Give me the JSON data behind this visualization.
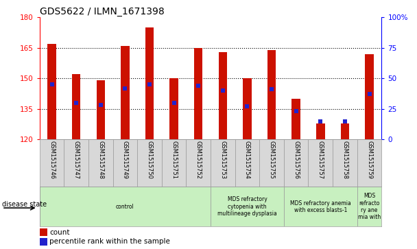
{
  "title": "GDS5622 / ILMN_1671398",
  "samples": [
    "GSM1515746",
    "GSM1515747",
    "GSM1515748",
    "GSM1515749",
    "GSM1515750",
    "GSM1515751",
    "GSM1515752",
    "GSM1515753",
    "GSM1515754",
    "GSM1515755",
    "GSM1515756",
    "GSM1515757",
    "GSM1515758",
    "GSM1515759"
  ],
  "counts": [
    167,
    152,
    149,
    166,
    175,
    150,
    165,
    163,
    150,
    164,
    140,
    128,
    128,
    162
  ],
  "percentiles": [
    45,
    30,
    28,
    42,
    45,
    30,
    44,
    40,
    27,
    41,
    23,
    15,
    15,
    37
  ],
  "ymin": 120,
  "ymax": 180,
  "yright_min": 0,
  "yright_max": 100,
  "yticks_left": [
    120,
    135,
    150,
    165,
    180
  ],
  "yticks_right": [
    0,
    25,
    50,
    75,
    100
  ],
  "bar_color": "#CC1100",
  "marker_color": "#2222CC",
  "disease_groups": [
    {
      "label": "control",
      "start": 0,
      "end": 7
    },
    {
      "label": "MDS refractory\ncytopenia with\nmultilineage dysplasia",
      "start": 7,
      "end": 10
    },
    {
      "label": "MDS refractory anemia\nwith excess blasts-1",
      "start": 10,
      "end": 13
    },
    {
      "label": "MDS\nrefracto\nry ane\nmia with",
      "start": 13,
      "end": 14
    }
  ],
  "group_color": "#C8F0C0",
  "tick_bg_color": "#D8D8D8",
  "bar_width": 0.35,
  "marker_size": 18
}
